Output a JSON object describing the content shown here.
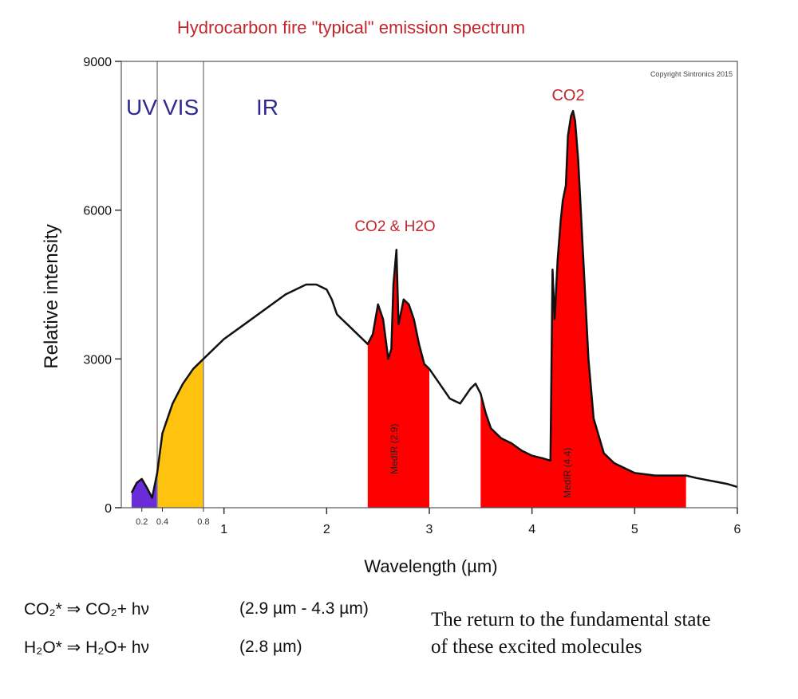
{
  "chart_data": {
    "type": "area",
    "title": "Hydrocarbon fire \"typical\" emission spectrum",
    "copyright": "Copyright Sintronics 2015",
    "xlabel": "Wavelength (µm)",
    "ylabel": "Relative intensity",
    "xlim": [
      0,
      6
    ],
    "ylim": [
      0,
      9000
    ],
    "y_ticks": [
      "0",
      "3000",
      "6000",
      "9000"
    ],
    "y_tick_values": [
      0,
      3000,
      6000,
      9000
    ],
    "x_ticks": [
      "1",
      "2",
      "3",
      "4",
      "5",
      "6"
    ],
    "x_tick_values": [
      1,
      2,
      3,
      4,
      5,
      6
    ],
    "x_minor_ticks": [
      "0.2",
      "0.4",
      "0.8"
    ],
    "x_minor_tick_values": [
      0.2,
      0.4,
      0.8
    ],
    "region_labels": [
      {
        "text": "UV",
        "color": "#2e2a8f"
      },
      {
        "text": "VIS",
        "color": "#2e2a8f"
      },
      {
        "text": "IR",
        "color": "#2e2a8f"
      }
    ],
    "region_boundaries": [
      0.35,
      0.8
    ],
    "annotations": [
      {
        "text": "CO2 & H2O",
        "color": "#c0272d"
      },
      {
        "text": "CO2",
        "color": "#c0272d"
      }
    ],
    "filter_labels": [
      "MedIR (2.9)",
      "MedIR (4.4)"
    ],
    "fill_colors": {
      "uv": "#6a2bd9",
      "vis": "#ffc20e",
      "band": "#ff0000"
    },
    "series": [
      {
        "name": "spectrum",
        "x": [
          0.1,
          0.15,
          0.2,
          0.25,
          0.3,
          0.35,
          0.4,
          0.5,
          0.6,
          0.7,
          0.8,
          1.0,
          1.2,
          1.4,
          1.6,
          1.8,
          1.9,
          2.0,
          2.05,
          2.1,
          2.15,
          2.2,
          2.3,
          2.4,
          2.45,
          2.5,
          2.55,
          2.6,
          2.63,
          2.65,
          2.68,
          2.7,
          2.73,
          2.75,
          2.8,
          2.85,
          2.9,
          2.95,
          3.0,
          3.1,
          3.2,
          3.3,
          3.4,
          3.45,
          3.5,
          3.55,
          3.6,
          3.7,
          3.8,
          3.9,
          4.0,
          4.1,
          4.18,
          4.2,
          4.22,
          4.25,
          4.28,
          4.3,
          4.33,
          4.35,
          4.38,
          4.4,
          4.42,
          4.45,
          4.5,
          4.55,
          4.6,
          4.7,
          4.8,
          5.0,
          5.2,
          5.5,
          5.6,
          5.7,
          5.8,
          5.9,
          6.0
        ],
        "values": [
          300,
          500,
          580,
          400,
          200,
          700,
          1500,
          2100,
          2500,
          2800,
          3000,
          3400,
          3700,
          4000,
          4300,
          4500,
          4500,
          4400,
          4200,
          3900,
          3800,
          3700,
          3500,
          3300,
          3500,
          4100,
          3800,
          3000,
          3200,
          4500,
          5200,
          3700,
          4000,
          4200,
          4100,
          3800,
          3300,
          2900,
          2800,
          2500,
          2200,
          2100,
          2400,
          2500,
          2300,
          1900,
          1600,
          1400,
          1300,
          1150,
          1050,
          1000,
          950,
          4800,
          3800,
          5000,
          5800,
          6200,
          6500,
          7500,
          7900,
          8000,
          7800,
          7000,
          5000,
          3000,
          1800,
          1100,
          900,
          700,
          650,
          650,
          600,
          560,
          520,
          480,
          420
        ]
      }
    ],
    "filled_ranges": [
      {
        "name": "uv",
        "from": 0.1,
        "to": 0.35
      },
      {
        "name": "vis",
        "from": 0.35,
        "to": 0.8
      },
      {
        "name": "band-h2o-co2",
        "from": 2.4,
        "to": 3.0
      },
      {
        "name": "band-co2",
        "from": 3.5,
        "to": 5.5
      }
    ]
  },
  "equations": [
    {
      "lhs": "CO₂* ⇒ CO₂+ hν",
      "range": "(2.9 µm - 4.3 µm)"
    },
    {
      "lhs": "H₂O* ⇒ H₂O+ hν",
      "range": "(2.8 µm)"
    }
  ],
  "explanation_lines": [
    "The return to the fundamental state",
    "of these excited molecules"
  ]
}
